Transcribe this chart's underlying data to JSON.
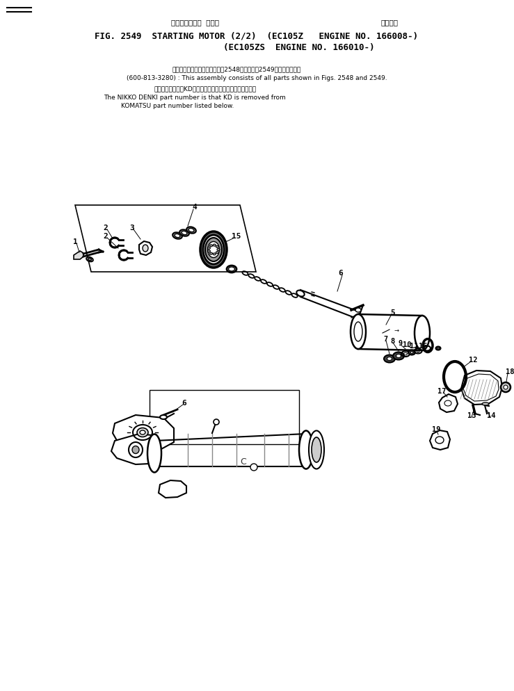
{
  "title_jp": "スターティング  モータ",
  "title_right_jp": "通用号機",
  "title_main_left": "FIG. 2549  STARTING MOTOR (2/2)  (EC105Z",
  "title_main_right": "ENGINE NO. 166008-)",
  "title_sub": "(EC105ZS  ENGINE NO. 166010-)",
  "note1_jp": "このアセンブリの構成部品は図2548図および図2549図を含みます。",
  "note1_en": "(600-813-3280) : This assembly consists of all parts shown in Figs. 2548 and 2549.",
  "note2_jp": "品番のメーカ記号KDを除いたものが日興電機の品番です。",
  "note2_en1": "The NIKKO DENKI part number is that KD is removed from",
  "note2_en2": "KOMATSU part number listed below.",
  "bg_color": "#ffffff",
  "line_color": "#000000",
  "text_color": "#000000"
}
